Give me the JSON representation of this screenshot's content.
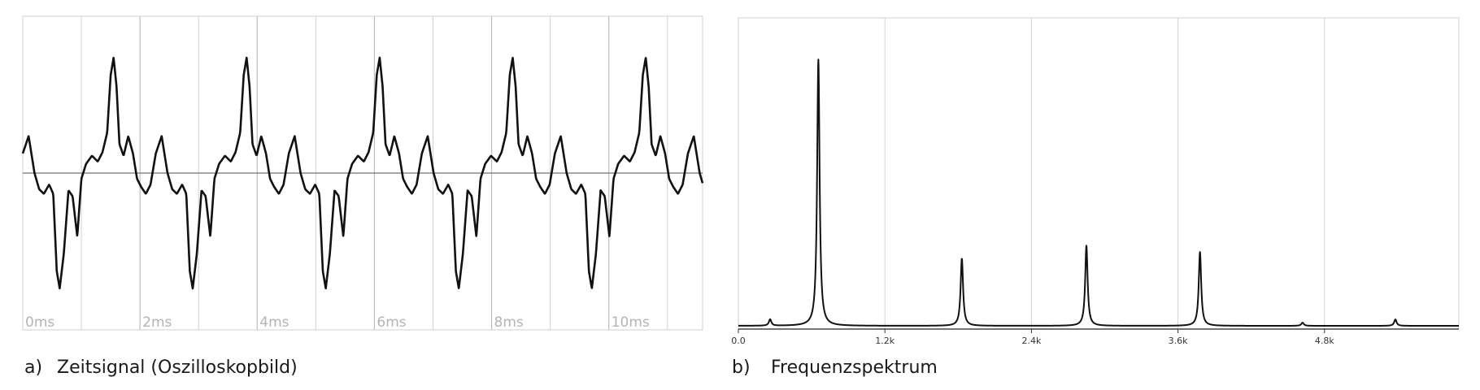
{
  "captions": {
    "a_letter": "a)",
    "a_text": "Zeitsignal (Oszilloskopbild)",
    "b_letter": "b)",
    "b_text": "Frequenzspektrum"
  },
  "colors": {
    "trace": "#111111",
    "grid": "#d2d2d2",
    "zero_line": "#8a8a8a",
    "tick_text": "#b4b4b4"
  },
  "chart_data": [
    {
      "type": "line",
      "title": "",
      "xlabel": "",
      "ylabel": "",
      "x_unit": "ms",
      "xlim": [
        0,
        11.6
      ],
      "ylim": [
        -1.35,
        1.35
      ],
      "x_tick_values": [
        0,
        2,
        4,
        6,
        8,
        10
      ],
      "x_tick_labels": [
        "0ms",
        "2ms",
        "4ms",
        "6ms",
        "8ms",
        "10ms"
      ],
      "grid": true,
      "zero_line": true,
      "period_ms": 2.27,
      "waveform_one_period": {
        "t_ms": [
          0.0,
          0.1,
          0.2,
          0.28,
          0.36,
          0.45,
          0.52,
          0.58,
          0.63,
          0.7,
          0.78,
          0.85,
          0.93,
          1.0,
          1.08,
          1.18,
          1.28,
          1.36,
          1.44,
          1.5,
          1.55,
          1.6,
          1.65,
          1.72,
          1.8,
          1.88,
          1.95,
          2.02,
          2.1,
          2.18,
          2.27
        ],
        "y": [
          0.17,
          0.32,
          0.0,
          -0.14,
          -0.18,
          -0.1,
          -0.18,
          -0.85,
          -1.0,
          -0.7,
          -0.15,
          -0.2,
          -0.55,
          -0.05,
          0.08,
          0.15,
          0.1,
          0.18,
          0.35,
          0.85,
          1.0,
          0.75,
          0.25,
          0.15,
          0.32,
          0.17,
          -0.05,
          -0.12,
          -0.18,
          -0.1,
          0.17
        ]
      }
    },
    {
      "type": "line",
      "title": "",
      "xlabel": "",
      "ylabel": "",
      "xlim": [
        0,
        5.9
      ],
      "x_tick_values": [
        0,
        1.2,
        2.4,
        3.6,
        4.8
      ],
      "x_tick_labels": [
        "0.0",
        "1.2k",
        "2.4k",
        "3.6k",
        "4.8k"
      ],
      "ylim": [
        0,
        1
      ],
      "grid": true,
      "baseline": 0.01,
      "peaks": [
        {
          "f_k": 0.26,
          "a": 0.02
        },
        {
          "f_k": 0.655,
          "a": 0.83
        },
        {
          "f_k": 1.83,
          "a": 0.21
        },
        {
          "f_k": 2.85,
          "a": 0.25
        },
        {
          "f_k": 3.78,
          "a": 0.23
        },
        {
          "f_k": 4.62,
          "a": 0.01
        },
        {
          "f_k": 5.38,
          "a": 0.02
        }
      ]
    }
  ]
}
